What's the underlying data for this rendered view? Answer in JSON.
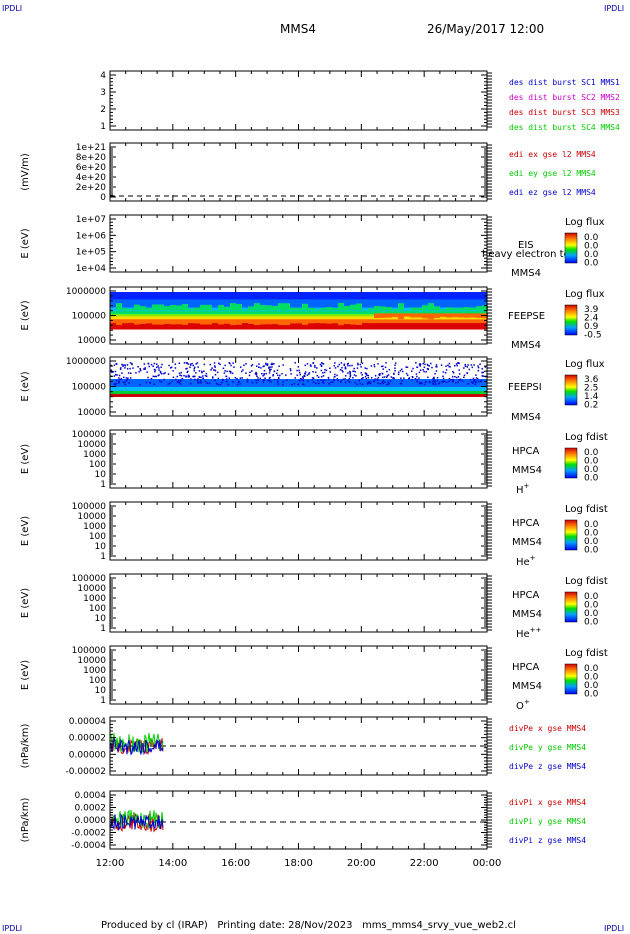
{
  "header": {
    "corner_tl": "IPDLI",
    "corner_tr": "IPDLI",
    "corner_bl": "IPDLI",
    "corner_br": "IPDLI",
    "spacecraft": "MMS4",
    "date": "26/May/2017 12:00"
  },
  "footer": {
    "produced_by": "Produced by cl (IRAP)",
    "printing_date": "Printing date: 28/Nov/2023",
    "script": "mms_mms4_srvy_vue_web2.cl"
  },
  "colors": {
    "axis": "#000000",
    "red": "#cc0000",
    "green": "#00cc00",
    "blue": "#0000cc",
    "magenta": "#cc00cc"
  },
  "chart_data": {
    "type": "stacked-panels",
    "x_tick_labels": [
      "12:00",
      "14:00",
      "16:00",
      "18:00",
      "20:00",
      "22:00",
      "00:00"
    ],
    "panels": [
      {
        "id": "des-dist",
        "ylabel": "",
        "yticks": [
          "4",
          "3",
          "2",
          "1"
        ],
        "legend": [
          {
            "text": "des dist burst SC1 MMS1",
            "color": "#0000cc"
          },
          {
            "text": "des dist burst SC2 MMS2",
            "color": "#cc00cc"
          },
          {
            "text": "des dist burst SC3 MMS3",
            "color": "#cc0000"
          },
          {
            "text": "des dist burst SC4 MMS4",
            "color": "#00cc00"
          }
        ]
      },
      {
        "id": "edi",
        "ylabel": "(mV/m)",
        "yticks": [
          "1e+21",
          "8e+20",
          "6e+20",
          "4e+20",
          "2e+20",
          "0"
        ],
        "legend": [
          {
            "text": "edi ex gse l2 MMS4",
            "color": "#cc0000"
          },
          {
            "text": "edi ey gse l2 MMS4",
            "color": "#00cc00"
          },
          {
            "text": "edi ez gse l2 MMS4",
            "color": "#0000cc"
          }
        ]
      },
      {
        "id": "eis",
        "ylabel": "E (eV)",
        "yticks": [
          "1e+07",
          "1e+06",
          "1e+05",
          "1e+04"
        ],
        "instrument": "EIS",
        "overlay": "heavy electron to",
        "spacecraft": "MMS4",
        "colorbar": {
          "title": "Log flux",
          "labels": [
            "0.0",
            "0.0",
            "0.0",
            "0.0"
          ]
        }
      },
      {
        "id": "feepse",
        "ylabel": "E (eV)",
        "yticks": [
          "1000000",
          "100000",
          "10000"
        ],
        "instrument": "FEEPSE",
        "spacecraft": "MMS4",
        "colorbar": {
          "title": "Log flux",
          "labels": [
            "3.9",
            "2.4",
            "0.9",
            "-0.5"
          ]
        }
      },
      {
        "id": "feepsi",
        "ylabel": "E (eV)",
        "yticks": [
          "1000000",
          "100000",
          "10000"
        ],
        "instrument": "FEEPSI",
        "spacecraft": "MMS4",
        "colorbar": {
          "title": "Log flux",
          "labels": [
            "3.6",
            "2.5",
            "1.4",
            "0.2"
          ]
        }
      },
      {
        "id": "hpca-h",
        "ylabel": "E (eV)",
        "yticks": [
          "100000",
          "10000",
          "1000",
          "100",
          "10",
          "1"
        ],
        "instrument": "HPCA",
        "spacecraft": "MMS4",
        "species": "H",
        "species_sup": "+",
        "colorbar": {
          "title": "Log fdist",
          "labels": [
            "0.0",
            "0.0",
            "0.0",
            "0.0"
          ]
        }
      },
      {
        "id": "hpca-he1",
        "ylabel": "E (eV)",
        "yticks": [
          "100000",
          "10000",
          "1000",
          "100",
          "10",
          "1"
        ],
        "instrument": "HPCA",
        "spacecraft": "MMS4",
        "species": "He",
        "species_sup": "+",
        "colorbar": {
          "title": "Log fdist",
          "labels": [
            "0.0",
            "0.0",
            "0.0",
            "0.0"
          ]
        }
      },
      {
        "id": "hpca-he2",
        "ylabel": "E (eV)",
        "yticks": [
          "100000",
          "10000",
          "1000",
          "100",
          "10",
          "1"
        ],
        "instrument": "HPCA",
        "spacecraft": "MMS4",
        "species": "He",
        "species_sup": "++",
        "colorbar": {
          "title": "Log fdist",
          "labels": [
            "0.0",
            "0.0",
            "0.0",
            "0.0"
          ]
        }
      },
      {
        "id": "hpca-o",
        "ylabel": "E (eV)",
        "yticks": [
          "100000",
          "10000",
          "1000",
          "100",
          "10",
          "1"
        ],
        "instrument": "HPCA",
        "spacecraft": "MMS4",
        "species": "O",
        "species_sup": "+",
        "colorbar": {
          "title": "Log fdist",
          "labels": [
            "0.0",
            "0.0",
            "0.0",
            "0.0"
          ]
        }
      },
      {
        "id": "divpe",
        "ylabel": "(nPa/km)",
        "yticks": [
          "0.00004",
          "0.00002",
          "0.00000",
          "-0.00002"
        ],
        "legend": [
          {
            "text": "divPe x gse MMS4",
            "color": "#cc0000"
          },
          {
            "text": "divPe y gse MMS4",
            "color": "#00cc00"
          },
          {
            "text": "divPe z gse MMS4",
            "color": "#0000cc"
          }
        ]
      },
      {
        "id": "divpi",
        "ylabel": "(nPa/km)",
        "yticks": [
          "0.0004",
          "0.0002",
          "0.0000",
          "-0.0002",
          "-0.0004"
        ],
        "legend": [
          {
            "text": "divPi x gse MMS4",
            "color": "#cc0000"
          },
          {
            "text": "divPi y gse MMS4",
            "color": "#00cc00"
          },
          {
            "text": "divPi z gse MMS4",
            "color": "#0000cc"
          }
        ]
      }
    ]
  }
}
